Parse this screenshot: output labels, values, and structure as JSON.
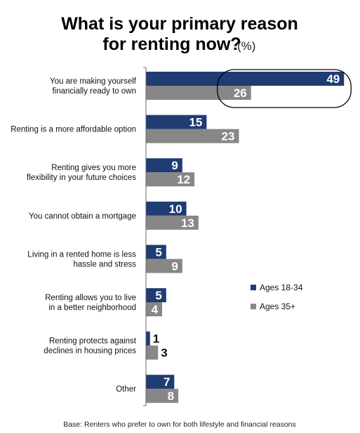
{
  "chart_data": {
    "type": "bar",
    "orientation": "horizontal",
    "title_line1": "What is your primary reason",
    "title_line2": "for renting now?",
    "unit": "(%)",
    "categories": [
      [
        "You are making yourself",
        "financially ready to own"
      ],
      [
        "Renting is a more affordable option"
      ],
      [
        "Renting gives you more",
        "flexibility in your future choices"
      ],
      [
        "You cannot obtain a mortgage"
      ],
      [
        "Living in a rented home is less",
        "hassle and stress"
      ],
      [
        "Renting allows you to live",
        "in a better neighborhood"
      ],
      [
        "Renting protects against",
        "declines in housing prices"
      ],
      [
        "Other"
      ]
    ],
    "series": [
      {
        "name": "Ages 18-34",
        "color": "#1f3c73",
        "values": [
          49,
          15,
          9,
          10,
          5,
          5,
          1,
          7
        ]
      },
      {
        "name": "Ages 35+",
        "color": "#878787",
        "values": [
          26,
          23,
          12,
          13,
          9,
          4,
          3,
          8
        ]
      }
    ],
    "xlim": [
      0,
      50
    ],
    "highlight": "first category circled",
    "legend_position": "right",
    "footnote": "Base: Renters who prefer to own for both lifestyle and financial reasons"
  }
}
